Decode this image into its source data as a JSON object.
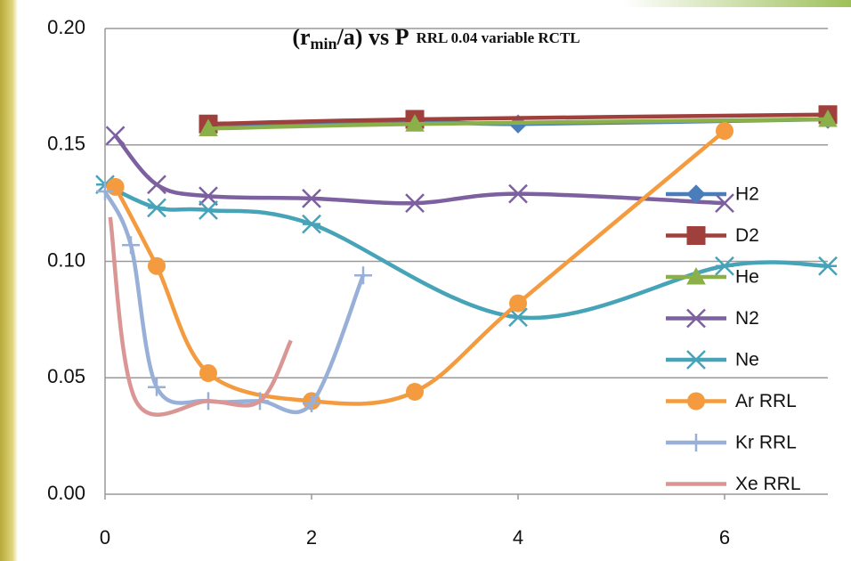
{
  "chart_data": {
    "type": "line",
    "title_parts": [
      "(r",
      "min",
      "/a) vs P"
    ],
    "subtitle": "RRL 0.04 variable RCTL",
    "xlim": [
      0,
      7
    ],
    "xticks": [
      0,
      2,
      4,
      6
    ],
    "ylim": [
      0,
      0.2
    ],
    "yticks": [
      {
        "value": 0,
        "label": "0.00"
      },
      {
        "value": 0.05,
        "label": "0.05"
      },
      {
        "value": 0.1,
        "label": "0.10"
      },
      {
        "value": 0.15,
        "label": "0.15"
      },
      {
        "value": 0.2,
        "label": "0.20"
      }
    ],
    "grid": true,
    "smooth": true,
    "legend": "right",
    "series": [
      {
        "name": "H2",
        "color": "#4a7ebb",
        "marker": "diamond",
        "x": [
          1,
          3,
          4,
          7
        ],
        "values": [
          0.158,
          0.16,
          0.159,
          0.161
        ]
      },
      {
        "name": "D2",
        "color": "#a0403d",
        "marker": "square",
        "x": [
          1,
          3,
          7
        ],
        "values": [
          0.159,
          0.161,
          0.163
        ]
      },
      {
        "name": "He",
        "color": "#8bb04a",
        "marker": "triangle",
        "x": [
          1,
          3,
          7
        ],
        "values": [
          0.157,
          0.159,
          0.161
        ]
      },
      {
        "name": "N2",
        "color": "#7d60a0",
        "marker": "x",
        "x": [
          0.1,
          0.5,
          1,
          2,
          3,
          4,
          6
        ],
        "values": [
          0.154,
          0.133,
          0.128,
          0.127,
          0.125,
          0.129,
          0.125
        ]
      },
      {
        "name": "Ne",
        "color": "#46a3b8",
        "marker": "star",
        "x": [
          0,
          0.5,
          1,
          2,
          4,
          6,
          7
        ],
        "values": [
          0.133,
          0.123,
          0.122,
          0.116,
          0.076,
          0.098,
          0.098
        ]
      },
      {
        "name": "Ar RRL",
        "color": "#f39b3e",
        "marker": "circle",
        "x": [
          0.1,
          0.5,
          1,
          2,
          3,
          4,
          6
        ],
        "values": [
          0.132,
          0.098,
          0.052,
          0.04,
          0.044,
          0.082,
          0.156
        ]
      },
      {
        "name": "Kr RRL",
        "color": "#98b0d8",
        "marker": "plus",
        "x": [
          0,
          0.25,
          0.5,
          1,
          1.5,
          2,
          2.5
        ],
        "values": [
          0.13,
          0.107,
          0.046,
          0.04,
          0.04,
          0.039,
          0.094
        ]
      },
      {
        "name": "Xe RRL",
        "color": "#d99694",
        "marker": "none",
        "x": [
          0.05,
          0.3,
          1,
          1.5,
          1.8
        ],
        "values": [
          0.119,
          0.04,
          0.04,
          0.04,
          0.066
        ]
      }
    ]
  }
}
